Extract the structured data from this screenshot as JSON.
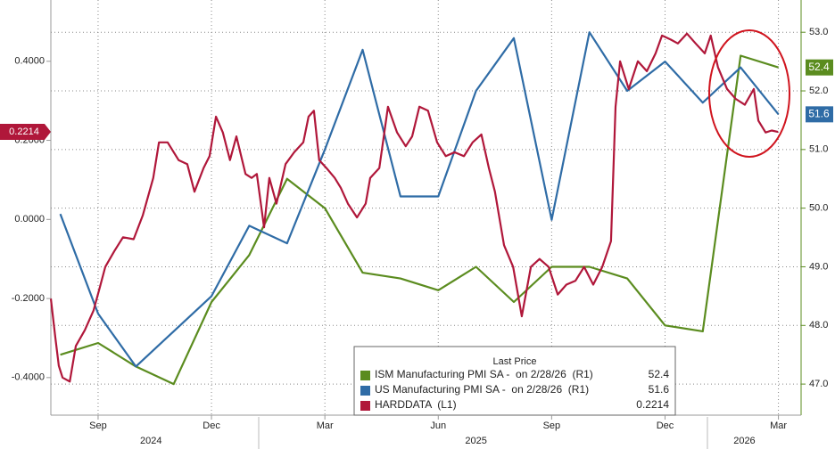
{
  "chart_data": {
    "type": "line",
    "xlim": [
      7.75,
      27.6
    ],
    "xticks": [
      {
        "value": 9,
        "label": "Sep"
      },
      {
        "value": 12,
        "label": "Dec"
      },
      {
        "value": 15,
        "label": "Mar"
      },
      {
        "value": 18,
        "label": "Jun"
      },
      {
        "value": 21,
        "label": "Sep"
      },
      {
        "value": 24,
        "label": "Dec"
      },
      {
        "value": 27,
        "label": "Mar"
      }
    ],
    "year_ticks": [
      {
        "value": 10.4,
        "label": "2024"
      },
      {
        "value": 19.0,
        "label": "2025"
      },
      {
        "value": 26.1,
        "label": "2026"
      }
    ],
    "ylim": [
      -0.495,
      0.555
    ],
    "yticks": [
      {
        "value": 0.4,
        "label": "0.4000"
      },
      {
        "value": 0.2,
        "label": "0.2000"
      },
      {
        "value": 0,
        "label": "0.0000"
      },
      {
        "value": -0.2,
        "label": "-0.2000"
      },
      {
        "value": -0.4,
        "label": "-0.4000"
      }
    ],
    "y2lim": [
      46.47,
      53.55
    ],
    "y2ticks": [
      {
        "value": 53,
        "label": "53.0"
      },
      {
        "value": 52,
        "label": "52.0"
      },
      {
        "value": 51,
        "label": "51.0"
      },
      {
        "value": 50,
        "label": "50.0"
      },
      {
        "value": 49,
        "label": "49.0"
      },
      {
        "value": 48,
        "label": "48.0"
      },
      {
        "value": 47,
        "label": "47.0"
      }
    ],
    "grid": true,
    "legend_title": "Last Price",
    "series": [
      {
        "name": "ISM Manufacturing PMI SA -  on 2/28/26  (R1)",
        "color": "#5b8c1f",
        "axis": "y2",
        "x": [
          8,
          9,
          10,
          11,
          12,
          13,
          14,
          15,
          16,
          17,
          18,
          19,
          20,
          21,
          22,
          23,
          24,
          25,
          26,
          27
        ],
        "values": [
          47.5,
          47.7,
          47.3,
          47.0,
          48.4,
          49.2,
          50.5,
          50.0,
          48.9,
          48.8,
          48.6,
          49.0,
          48.4,
          49.0,
          49.0,
          48.8,
          48.0,
          47.9,
          52.6,
          52.4
        ]
      },
      {
        "name": "US Manufacturing PMI SA -  on 2/28/26  (R1)",
        "color": "#2f6ca6",
        "axis": "y2",
        "x": [
          8,
          9,
          10,
          11,
          12,
          13,
          14,
          15,
          16,
          17,
          18,
          19,
          20,
          21,
          22,
          23,
          24,
          25,
          26,
          27
        ],
        "values": [
          49.9,
          48.2,
          47.3,
          47.9,
          48.5,
          49.7,
          49.4,
          51.0,
          52.7,
          50.2,
          50.2,
          52.0,
          52.9,
          49.8,
          53.0,
          52.0,
          52.5,
          51.8,
          52.4,
          51.6
        ]
      },
      {
        "name": "HARDDATA  (L1)",
        "color": "#b0173a",
        "axis": "y",
        "x": [
          7.75,
          7.87,
          7.96,
          8.06,
          8.25,
          8.41,
          8.65,
          8.88,
          9.05,
          9.19,
          9.43,
          9.66,
          9.94,
          10.18,
          10.46,
          10.61,
          10.84,
          11.13,
          11.36,
          11.55,
          11.79,
          11.95,
          12.12,
          12.3,
          12.49,
          12.66,
          12.9,
          13.06,
          13.2,
          13.39,
          13.53,
          13.72,
          13.96,
          14.19,
          14.43,
          14.57,
          14.71,
          14.85,
          15.04,
          15.26,
          15.42,
          15.61,
          15.85,
          16.08,
          16.2,
          16.44,
          16.67,
          16.91,
          17.14,
          17.31,
          17.5,
          17.73,
          17.97,
          18.2,
          18.43,
          18.68,
          18.91,
          19.14,
          19.34,
          19.5,
          19.74,
          19.98,
          20.21,
          20.45,
          20.68,
          20.92,
          21.16,
          21.39,
          21.63,
          21.86,
          22.1,
          22.34,
          22.57,
          22.69,
          22.81,
          23.04,
          23.28,
          23.52,
          23.75,
          23.92,
          24.15,
          24.34,
          24.58,
          24.81,
          25.05,
          25.21,
          25.4,
          25.64,
          25.87,
          26.11,
          26.35,
          26.47,
          26.66,
          26.82,
          26.99
        ],
        "values": [
          -0.2,
          -0.3,
          -0.37,
          -0.4,
          -0.41,
          -0.32,
          -0.28,
          -0.23,
          -0.17,
          -0.12,
          -0.08,
          -0.045,
          -0.05,
          0.01,
          0.105,
          0.195,
          0.195,
          0.15,
          0.14,
          0.07,
          0.13,
          0.16,
          0.26,
          0.22,
          0.15,
          0.21,
          0.115,
          0.105,
          0.115,
          -0.02,
          0.105,
          0.04,
          0.14,
          0.17,
          0.195,
          0.26,
          0.275,
          0.15,
          0.13,
          0.105,
          0.08,
          0.04,
          0.005,
          0.04,
          0.105,
          0.13,
          0.285,
          0.22,
          0.185,
          0.21,
          0.285,
          0.275,
          0.195,
          0.16,
          0.17,
          0.16,
          0.195,
          0.215,
          0.13,
          0.07,
          -0.065,
          -0.12,
          -0.245,
          -0.12,
          -0.1,
          -0.12,
          -0.19,
          -0.165,
          -0.155,
          -0.12,
          -0.165,
          -0.12,
          -0.055,
          0.285,
          0.4,
          0.33,
          0.4,
          0.375,
          0.42,
          0.465,
          0.455,
          0.445,
          0.47,
          0.445,
          0.42,
          0.465,
          0.385,
          0.33,
          0.305,
          0.29,
          0.33,
          0.25,
          0.22,
          0.225,
          0.2214
        ]
      }
    ]
  }
}
